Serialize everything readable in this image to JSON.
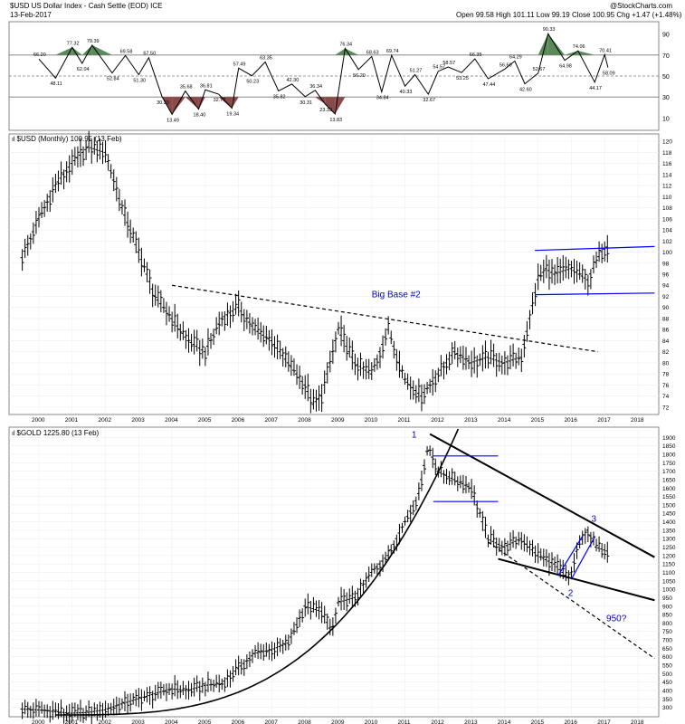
{
  "header": {
    "title": "$USD US Dollar Index - Cash Settle (EOD) ICE",
    "date": "13-Feb-2017",
    "brand": "@StockCharts.com",
    "quote": "Open 99.58  High 101.11  Low 99.19  Close 100.95  Chg +1.47 (+1.48%)",
    "quote_marker": "▲"
  },
  "colors": {
    "price_bars": "#000000",
    "channel_lines": "#0000ff",
    "annotation_text": "#0000cc",
    "overbought_fill": "#5a8a5a",
    "oversold_fill": "#8b4a4a",
    "grid": "#cccccc"
  },
  "chart_data": [
    {
      "type": "line",
      "title": "",
      "ylim": [
        0,
        100
      ],
      "y_ticks": [
        10,
        30,
        50,
        70,
        90
      ],
      "reference_lines": [
        70,
        50,
        30
      ],
      "overbought": 70,
      "oversold": 30,
      "x": [
        2000.0,
        2000.5,
        2001.0,
        2001.3,
        2001.6,
        2002.2,
        2002.6,
        2003.0,
        2003.3,
        2003.7,
        2004.0,
        2004.4,
        2004.8,
        2005.0,
        2005.4,
        2005.8,
        2006.0,
        2006.4,
        2006.8,
        2007.2,
        2007.6,
        2008.0,
        2008.3,
        2008.6,
        2008.9,
        2009.2,
        2009.6,
        2010.0,
        2010.3,
        2010.6,
        2011.0,
        2011.3,
        2011.7,
        2012.0,
        2012.3,
        2012.7,
        2013.1,
        2013.5,
        2014.0,
        2014.3,
        2014.6,
        2015.0,
        2015.3,
        2015.8,
        2016.2,
        2016.7,
        2017.0,
        2017.1
      ],
      "y": [
        66.2,
        48.11,
        77.32,
        62.04,
        79.39,
        52.84,
        69.58,
        51.3,
        67.5,
        30.23,
        13.49,
        35.68,
        18.4,
        36.81,
        32.77,
        19.34,
        57.49,
        50.23,
        63.35,
        35.82,
        42.3,
        30.31,
        36.34,
        23.33,
        13.83,
        76.34,
        56.2,
        68.63,
        34.84,
        69.74,
        40.33,
        51.27,
        32.67,
        54.57,
        58.57,
        53.25,
        66.35,
        47.44,
        56.6,
        64.29,
        42.6,
        52.67,
        90.33,
        64.98,
        74.06,
        44.17,
        70.41,
        58.09
      ],
      "point_labels": [
        "66.20",
        "48.11",
        "77.32",
        "62.04",
        "79.39",
        "52.84",
        "69.58",
        "51.30",
        "67.50",
        "30.23",
        "13.49",
        "35.68",
        "18.40",
        "36.81",
        "32.77",
        "19.34",
        "57.49",
        "50.23",
        "63.35",
        "35.82",
        "42.30",
        "30.31",
        "36.34",
        "23.33",
        "13.83",
        "76.34",
        "56.20",
        "68.63",
        "34.84",
        "69.74",
        "40.33",
        "51.27",
        "32.67",
        "54.57",
        "58.57",
        "53.25",
        "66.35",
        "47.44",
        "56.60",
        "64.29",
        "42.60",
        "52.67",
        "90.33",
        "64.98",
        "74.06",
        "44.17",
        "70.41",
        "58.09"
      ]
    },
    {
      "type": "ohlc",
      "legend": "$USD (Monthly) 100.95 (13 Feb)",
      "legend_icon": "ıl",
      "ylim": [
        71,
        121
      ],
      "y_ticks": [
        72,
        74,
        76,
        78,
        80,
        82,
        84,
        86,
        88,
        90,
        92,
        94,
        96,
        98,
        100,
        102,
        104,
        106,
        108,
        110,
        112,
        114,
        116,
        118,
        120
      ],
      "x_ticks": [
        "2000",
        "2001",
        "2002",
        "2003",
        "2004",
        "2005",
        "2006",
        "2007",
        "2008",
        "2009",
        "2010",
        "2011",
        "2012",
        "2013",
        "2014",
        "2015",
        "2016",
        "2017",
        "2018"
      ],
      "series": [
        {
          "x": [
            1999.5,
            2000.0,
            2000.5,
            2001.0,
            2001.5,
            2002.0,
            2002.5,
            2003.0,
            2003.5,
            2004.0,
            2004.5,
            2005.0,
            2005.5,
            2006.0,
            2006.5,
            2007.0,
            2007.5,
            2008.0,
            2008.25,
            2008.5,
            2009.0,
            2009.5,
            2010.0,
            2010.5,
            2011.0,
            2011.5,
            2012.0,
            2012.5,
            2013.0,
            2013.5,
            2014.0,
            2014.5,
            2014.75,
            2015.0,
            2015.25,
            2015.5,
            2016.0,
            2016.5,
            2016.9,
            2017.1
          ],
          "values": [
            99,
            106,
            112,
            116,
            119,
            118,
            108,
            100,
            92,
            88,
            84,
            82,
            88,
            90,
            86,
            84,
            80,
            76,
            72.5,
            74,
            86,
            80,
            78,
            86,
            77,
            74,
            78,
            82,
            80,
            81,
            80,
            81,
            88,
            95,
            97,
            96,
            97,
            95,
            100,
            101
          ]
        }
      ],
      "annotations": [
        {
          "text": "Big Base #2",
          "x": 2010.0,
          "y": 91.8
        }
      ],
      "trendlines": [
        {
          "style": "dashed",
          "color": "#000000",
          "from": [
            2004.0,
            94.0
          ],
          "to": [
            2016.8,
            82.0
          ]
        },
        {
          "style": "solid",
          "color": "#0000ff",
          "from": [
            2014.9,
            100.3
          ],
          "to": [
            2018.5,
            101.0
          ]
        },
        {
          "style": "solid",
          "color": "#0000ff",
          "from": [
            2014.9,
            92.3
          ],
          "to": [
            2018.5,
            92.6
          ]
        }
      ]
    },
    {
      "type": "ohlc",
      "legend": "$GOLD 1225.80 (13 Feb)",
      "legend_icon": "ıl",
      "ylim": [
        255,
        1950
      ],
      "y_ticks": [
        300,
        350,
        400,
        450,
        500,
        550,
        600,
        650,
        700,
        750,
        800,
        850,
        900,
        950,
        1000,
        1050,
        1100,
        1150,
        1200,
        1250,
        1300,
        1350,
        1400,
        1450,
        1500,
        1550,
        1600,
        1650,
        1700,
        1750,
        1800,
        1850,
        1900
      ],
      "x_ticks": [
        "2000",
        "2001",
        "2002",
        "2003",
        "2004",
        "2005",
        "2006",
        "2007",
        "2008",
        "2009",
        "2010",
        "2011",
        "2012",
        "2013",
        "2014",
        "2015",
        "2016",
        "2017",
        "2018"
      ],
      "series": [
        {
          "x": [
            1999.5,
            2000.0,
            2000.5,
            2001.0,
            2001.5,
            2002.0,
            2002.5,
            2003.0,
            2003.5,
            2004.0,
            2004.5,
            2005.0,
            2005.5,
            2006.0,
            2006.5,
            2007.0,
            2007.5,
            2008.0,
            2008.5,
            2008.8,
            2009.0,
            2009.5,
            2010.0,
            2010.5,
            2011.0,
            2011.4,
            2011.7,
            2012.0,
            2012.5,
            2013.0,
            2013.5,
            2014.0,
            2014.5,
            2015.0,
            2015.5,
            2015.95,
            2016.2,
            2016.5,
            2016.75,
            2017.1
          ],
          "values": [
            290,
            285,
            275,
            265,
            270,
            285,
            320,
            350,
            380,
            410,
            400,
            430,
            440,
            530,
            620,
            640,
            680,
            900,
            870,
            750,
            920,
            950,
            1100,
            1200,
            1400,
            1550,
            1850,
            1700,
            1650,
            1600,
            1300,
            1250,
            1300,
            1200,
            1150,
            1060,
            1250,
            1350,
            1250,
            1226
          ]
        }
      ],
      "annotations": [
        {
          "text": "1",
          "x": 2011.2,
          "y": 1900
        },
        {
          "text": "2",
          "x": 2015.9,
          "y": 960
        },
        {
          "text": "3",
          "x": 2016.6,
          "y": 1400
        },
        {
          "text": "950?",
          "x": 2017.05,
          "y": 810
        }
      ],
      "trendlines": [
        {
          "style": "solid",
          "color": "#000000",
          "from": [
            2011.75,
            1920
          ],
          "to": [
            2018.5,
            1190
          ]
        },
        {
          "style": "solid",
          "color": "#000000",
          "from": [
            2013.8,
            1180
          ],
          "to": [
            2018.5,
            935
          ]
        },
        {
          "style": "dashed",
          "color": "#000000",
          "from": [
            2013.5,
            1280
          ],
          "to": [
            2018.5,
            590
          ]
        },
        {
          "style": "solid",
          "color": "#0000ff",
          "from": [
            2011.85,
            1790
          ],
          "to": [
            2013.8,
            1790
          ]
        },
        {
          "style": "solid",
          "color": "#0000ff",
          "from": [
            2011.85,
            1520
          ],
          "to": [
            2013.8,
            1520
          ]
        },
        {
          "style": "solid",
          "color": "#0000ff",
          "from": [
            2015.6,
            1080
          ],
          "to": [
            2016.35,
            1320
          ]
        },
        {
          "style": "solid",
          "color": "#0000ff",
          "from": [
            2016.0,
            1060
          ],
          "to": [
            2016.7,
            1310
          ]
        }
      ]
    }
  ]
}
